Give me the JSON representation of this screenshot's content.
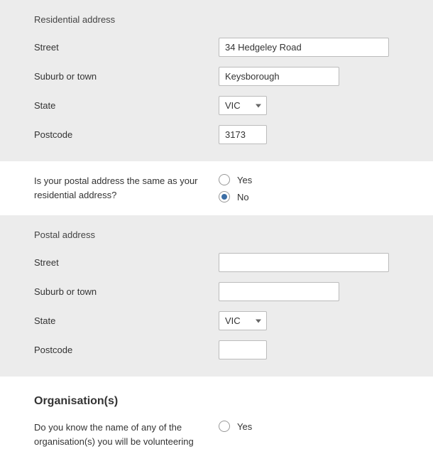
{
  "residential": {
    "title": "Residential address",
    "street_label": "Street",
    "street_value": "34 Hedgeley Road",
    "suburb_label": "Suburb or town",
    "suburb_value": "Keysborough",
    "state_label": "State",
    "state_value": "VIC",
    "postcode_label": "Postcode",
    "postcode_value": "3173"
  },
  "postal_same_q": {
    "question": "Is your postal address the same as your residential address?",
    "yes_label": "Yes",
    "no_label": "No",
    "selected": "no"
  },
  "postal": {
    "title": "Postal address",
    "street_label": "Street",
    "street_value": "",
    "suburb_label": "Suburb or town",
    "suburb_value": "",
    "state_label": "State",
    "state_value": "VIC",
    "postcode_label": "Postcode",
    "postcode_value": ""
  },
  "organisation": {
    "heading": "Organisation(s)",
    "question": "Do you know the name of any of the organisation(s) you will be volunteering",
    "yes_label": "Yes"
  }
}
